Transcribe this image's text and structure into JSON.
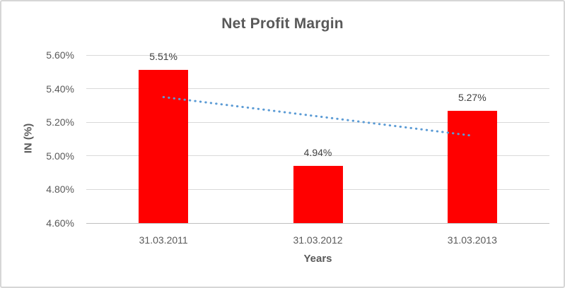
{
  "chart_data": {
    "type": "bar",
    "title": "Net Profit Margin",
    "categories": [
      "31.03.2011",
      "31.03.2012",
      "31.03.2013"
    ],
    "values": [
      5.51,
      4.94,
      5.27
    ],
    "data_labels": [
      "5.51%",
      "4.94%",
      "5.27%"
    ],
    "xlabel": "Years",
    "ylabel": "IN (%)",
    "ylim": [
      4.6,
      5.6
    ],
    "yticks": [
      {
        "label": "5.60%",
        "value": 5.6
      },
      {
        "label": "5.40%",
        "value": 5.4
      },
      {
        "label": "5.20%",
        "value": 5.2
      },
      {
        "label": "5.00%",
        "value": 5.0
      },
      {
        "label": "4.80%",
        "value": 4.8
      },
      {
        "label": "4.60%",
        "value": 4.6
      }
    ],
    "grid": true,
    "legend": "none",
    "bar_color": "#FF0000",
    "trendline": {
      "type": "linear",
      "style": "dotted",
      "color": "#5B9BD5",
      "start_value": 5.35,
      "end_value": 5.12
    }
  },
  "colors": {
    "title_text": "#595959",
    "axis_text": "#595959",
    "data_label_text": "#404040",
    "gridline": "#D9D9D9",
    "axis_line": "#C0C0C0",
    "frame_border": "#D6D6D6",
    "background": "#FFFFFF"
  }
}
